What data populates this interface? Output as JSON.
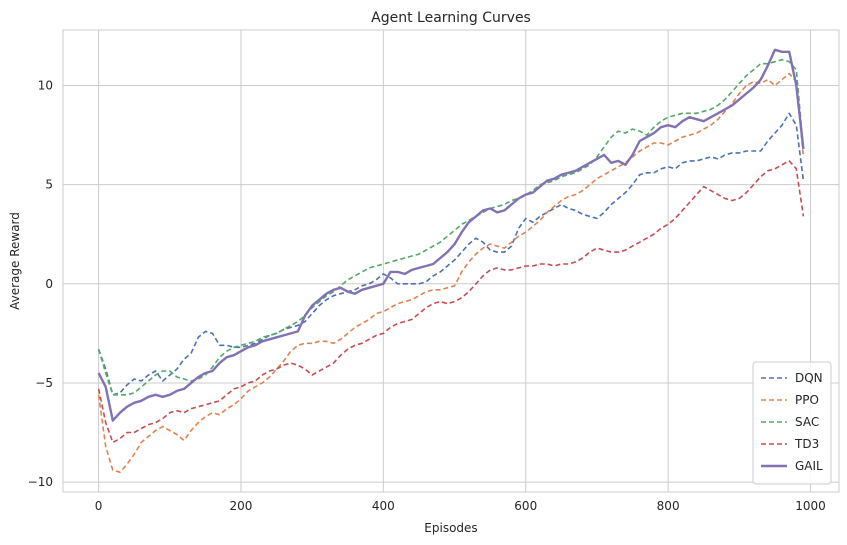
{
  "chart_data": {
    "type": "line",
    "title": "Agent Learning Curves",
    "xlabel": "Episodes",
    "ylabel": "Average Reward",
    "xlim": [
      -50,
      1040
    ],
    "ylim": [
      -10.5,
      12.8
    ],
    "xticks": [
      0,
      200,
      400,
      600,
      800,
      1000
    ],
    "yticks": [
      -10,
      -5,
      0,
      5,
      10
    ],
    "grid": true,
    "legend_position": "bottom-right",
    "x": [
      0,
      10,
      20,
      30,
      40,
      50,
      60,
      70,
      80,
      90,
      100,
      110,
      120,
      130,
      140,
      150,
      160,
      170,
      180,
      190,
      200,
      210,
      220,
      230,
      240,
      250,
      260,
      270,
      280,
      290,
      300,
      310,
      320,
      330,
      340,
      350,
      360,
      370,
      380,
      390,
      400,
      410,
      420,
      430,
      440,
      450,
      460,
      470,
      480,
      490,
      500,
      510,
      520,
      530,
      540,
      550,
      560,
      570,
      580,
      590,
      600,
      610,
      620,
      630,
      640,
      650,
      660,
      670,
      680,
      690,
      700,
      710,
      720,
      730,
      740,
      750,
      760,
      770,
      780,
      790,
      800,
      810,
      820,
      830,
      840,
      850,
      860,
      870,
      880,
      890,
      900,
      910,
      920,
      930,
      940,
      950,
      960,
      970,
      980,
      990
    ],
    "series": [
      {
        "name": "DQN",
        "color": "#4c72b0",
        "dash": "dashed",
        "values": [
          -3.3,
          -4.3,
          -5.6,
          -5.5,
          -5.1,
          -4.8,
          -4.9,
          -4.6,
          -4.4,
          -4.9,
          -4.6,
          -4.3,
          -3.8,
          -3.5,
          -2.7,
          -2.4,
          -2.5,
          -3.1,
          -3.1,
          -3.2,
          -3.2,
          -3.1,
          -3.0,
          -2.8,
          -2.6,
          -2.5,
          -2.3,
          -2.2,
          -2.1,
          -1.9,
          -1.5,
          -1.1,
          -0.8,
          -0.6,
          -0.5,
          -0.4,
          -0.3,
          -0.1,
          0.0,
          0.2,
          0.5,
          0.3,
          0.0,
          0.0,
          0.0,
          0.0,
          0.1,
          0.4,
          0.6,
          0.9,
          1.2,
          1.6,
          2.0,
          2.3,
          2.1,
          1.7,
          1.6,
          1.6,
          1.9,
          2.8,
          3.3,
          3.1,
          3.4,
          3.6,
          3.8,
          4.0,
          3.8,
          3.7,
          3.5,
          3.4,
          3.3,
          3.6,
          4.0,
          4.3,
          4.6,
          5.0,
          5.5,
          5.6,
          5.6,
          5.8,
          5.9,
          5.8,
          6.1,
          6.2,
          6.2,
          6.3,
          6.4,
          6.3,
          6.5,
          6.6,
          6.6,
          6.7,
          6.7,
          6.7,
          7.2,
          7.6,
          8.0,
          8.6,
          8.0,
          5.2
        ]
      },
      {
        "name": "PPO",
        "color": "#dd8452",
        "dash": "dashed",
        "values": [
          -5.6,
          -8.2,
          -9.4,
          -9.5,
          -9.1,
          -8.6,
          -8.0,
          -7.7,
          -7.4,
          -7.2,
          -7.4,
          -7.6,
          -7.9,
          -7.4,
          -7.0,
          -6.7,
          -6.5,
          -6.6,
          -6.3,
          -6.1,
          -5.8,
          -5.4,
          -5.2,
          -5.0,
          -4.7,
          -4.3,
          -3.9,
          -3.4,
          -3.1,
          -3.0,
          -3.0,
          -2.9,
          -2.9,
          -3.0,
          -2.8,
          -2.5,
          -2.2,
          -2.0,
          -1.8,
          -1.5,
          -1.4,
          -1.2,
          -1.0,
          -0.9,
          -0.8,
          -0.6,
          -0.4,
          -0.3,
          -0.3,
          -0.2,
          -0.1,
          0.6,
          1.1,
          1.5,
          1.8,
          2.0,
          1.9,
          1.8,
          2.1,
          2.4,
          2.6,
          2.9,
          3.2,
          3.6,
          3.9,
          4.2,
          4.4,
          4.5,
          4.7,
          5.0,
          5.3,
          5.5,
          5.7,
          5.9,
          6.1,
          6.4,
          6.7,
          6.9,
          7.1,
          7.1,
          7.0,
          7.2,
          7.4,
          7.5,
          7.6,
          7.8,
          8.0,
          8.3,
          8.7,
          9.1,
          9.6,
          10.0,
          10.2,
          10.1,
          10.3,
          10.0,
          10.3,
          10.6,
          10.2,
          6.4
        ]
      },
      {
        "name": "SAC",
        "color": "#55a868",
        "dash": "dashed",
        "values": [
          -3.3,
          -4.5,
          -5.6,
          -5.6,
          -5.6,
          -5.5,
          -5.2,
          -4.9,
          -4.6,
          -4.4,
          -4.4,
          -4.7,
          -4.8,
          -4.9,
          -4.8,
          -4.6,
          -4.2,
          -3.7,
          -3.4,
          -3.2,
          -3.1,
          -3.0,
          -2.9,
          -2.7,
          -2.6,
          -2.5,
          -2.3,
          -2.1,
          -1.9,
          -1.6,
          -1.2,
          -0.9,
          -0.6,
          -0.4,
          -0.1,
          0.2,
          0.4,
          0.6,
          0.8,
          0.9,
          1.0,
          1.1,
          1.2,
          1.3,
          1.4,
          1.5,
          1.7,
          1.9,
          2.1,
          2.4,
          2.7,
          3.0,
          3.2,
          3.4,
          3.6,
          3.8,
          3.9,
          4.0,
          4.2,
          4.3,
          4.5,
          4.7,
          5.0,
          5.1,
          5.2,
          5.4,
          5.5,
          5.6,
          5.8,
          6.0,
          6.4,
          6.9,
          7.4,
          7.7,
          7.6,
          7.8,
          7.7,
          7.5,
          7.9,
          8.2,
          8.4,
          8.5,
          8.6,
          8.6,
          8.6,
          8.7,
          8.8,
          9.0,
          9.3,
          9.7,
          10.1,
          10.5,
          10.8,
          11.1,
          11.1,
          11.2,
          11.3,
          11.2,
          10.8,
          6.8
        ]
      },
      {
        "name": "TD3",
        "color": "#c44e52",
        "dash": "dashed",
        "values": [
          -5.3,
          -7.0,
          -8.0,
          -7.8,
          -7.5,
          -7.5,
          -7.3,
          -7.1,
          -7.0,
          -6.8,
          -6.5,
          -6.4,
          -6.5,
          -6.3,
          -6.2,
          -6.1,
          -6.0,
          -5.9,
          -5.6,
          -5.3,
          -5.2,
          -5.0,
          -4.9,
          -4.6,
          -4.4,
          -4.3,
          -4.1,
          -4.0,
          -4.1,
          -4.3,
          -4.6,
          -4.4,
          -4.2,
          -4.0,
          -3.6,
          -3.3,
          -3.1,
          -3.0,
          -2.8,
          -2.6,
          -2.5,
          -2.2,
          -2.0,
          -1.9,
          -1.8,
          -1.5,
          -1.2,
          -1.0,
          -0.9,
          -1.0,
          -0.9,
          -0.7,
          -0.4,
          0.0,
          0.4,
          0.7,
          0.8,
          0.7,
          0.7,
          0.8,
          0.9,
          0.9,
          1.0,
          1.0,
          0.9,
          1.0,
          1.0,
          1.1,
          1.3,
          1.6,
          1.8,
          1.7,
          1.6,
          1.6,
          1.7,
          1.9,
          2.1,
          2.3,
          2.5,
          2.8,
          3.0,
          3.3,
          3.7,
          4.1,
          4.5,
          4.9,
          4.7,
          4.5,
          4.3,
          4.2,
          4.3,
          4.6,
          5.0,
          5.4,
          5.7,
          5.8,
          6.0,
          6.2,
          5.8,
          3.4
        ]
      },
      {
        "name": "GAIL",
        "color": "#8172b3",
        "dash": "solid",
        "values": [
          -4.5,
          -5.2,
          -6.9,
          -6.5,
          -6.2,
          -6.0,
          -5.9,
          -5.7,
          -5.6,
          -5.7,
          -5.6,
          -5.4,
          -5.3,
          -5.0,
          -4.7,
          -4.5,
          -4.4,
          -4.0,
          -3.7,
          -3.6,
          -3.4,
          -3.2,
          -3.1,
          -2.9,
          -2.8,
          -2.7,
          -2.6,
          -2.5,
          -2.4,
          -1.6,
          -1.1,
          -0.8,
          -0.5,
          -0.3,
          -0.2,
          -0.4,
          -0.5,
          -0.3,
          -0.2,
          -0.1,
          0.0,
          0.6,
          0.6,
          0.5,
          0.7,
          0.8,
          0.9,
          1.0,
          1.3,
          1.6,
          2.0,
          2.6,
          3.1,
          3.4,
          3.7,
          3.8,
          3.6,
          3.7,
          4.0,
          4.3,
          4.5,
          4.6,
          4.9,
          5.2,
          5.3,
          5.5,
          5.6,
          5.7,
          5.9,
          6.1,
          6.3,
          6.5,
          6.1,
          6.2,
          6.0,
          6.5,
          7.2,
          7.4,
          7.6,
          7.9,
          8.0,
          7.9,
          8.2,
          8.4,
          8.3,
          8.2,
          8.4,
          8.6,
          8.8,
          9.0,
          9.3,
          9.6,
          9.9,
          10.3,
          11.0,
          11.8,
          11.7,
          11.7,
          10.0,
          6.8
        ]
      }
    ]
  }
}
